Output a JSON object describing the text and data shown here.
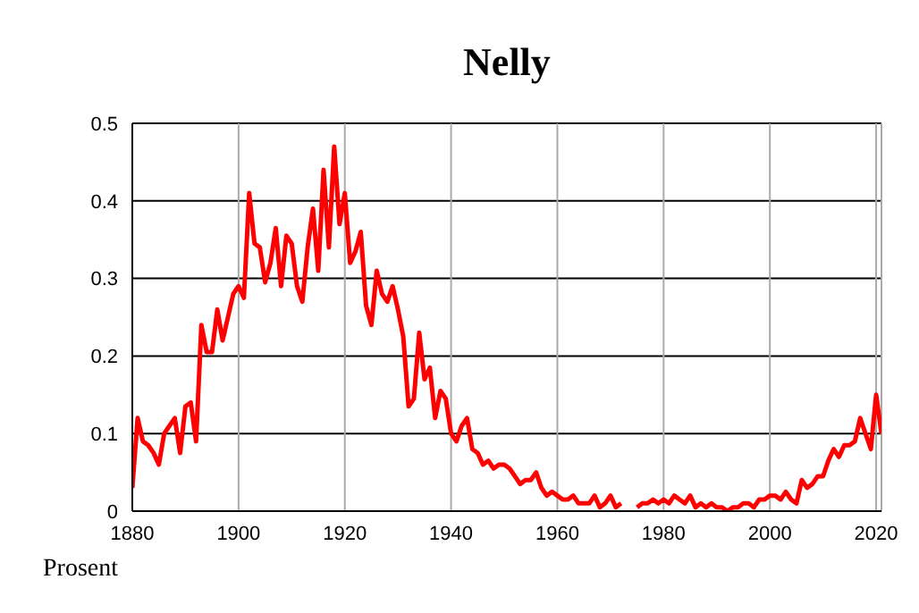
{
  "chart_data": {
    "type": "line",
    "title": "Nelly",
    "ylabel": "Prosent",
    "x": [
      1880,
      1881,
      1882,
      1883,
      1884,
      1885,
      1886,
      1887,
      1888,
      1889,
      1890,
      1891,
      1892,
      1893,
      1894,
      1895,
      1896,
      1897,
      1898,
      1899,
      1900,
      1901,
      1902,
      1903,
      1904,
      1905,
      1906,
      1907,
      1908,
      1909,
      1910,
      1911,
      1912,
      1913,
      1914,
      1915,
      1916,
      1917,
      1918,
      1919,
      1920,
      1921,
      1922,
      1923,
      1924,
      1925,
      1926,
      1927,
      1928,
      1929,
      1930,
      1931,
      1932,
      1933,
      1934,
      1935,
      1936,
      1937,
      1938,
      1939,
      1940,
      1941,
      1942,
      1943,
      1944,
      1945,
      1946,
      1947,
      1948,
      1949,
      1950,
      1951,
      1952,
      1953,
      1954,
      1955,
      1956,
      1957,
      1958,
      1959,
      1960,
      1961,
      1962,
      1963,
      1964,
      1965,
      1966,
      1967,
      1968,
      1969,
      1970,
      1971,
      1972,
      1973,
      1974,
      1975,
      1976,
      1977,
      1978,
      1979,
      1980,
      1981,
      1982,
      1983,
      1984,
      1985,
      1986,
      1987,
      1988,
      1989,
      1990,
      1991,
      1992,
      1993,
      1994,
      1995,
      1996,
      1997,
      1998,
      1999,
      2000,
      2001,
      2002,
      2003,
      2004,
      2005,
      2006,
      2007,
      2008,
      2009,
      2010,
      2011,
      2012,
      2013,
      2014,
      2015,
      2016,
      2017,
      2018,
      2019,
      2020,
      2021
    ],
    "series": [
      {
        "color": "#ff0000",
        "values": [
          0.03,
          0.12,
          0.09,
          0.085,
          0.075,
          0.06,
          0.1,
          0.11,
          0.12,
          0.075,
          0.135,
          0.14,
          0.09,
          0.24,
          0.205,
          0.205,
          0.26,
          0.22,
          0.25,
          0.28,
          0.29,
          0.275,
          0.41,
          0.345,
          0.34,
          0.295,
          0.32,
          0.365,
          0.29,
          0.355,
          0.345,
          0.29,
          0.27,
          0.34,
          0.39,
          0.31,
          0.44,
          0.34,
          0.47,
          0.37,
          0.41,
          0.32,
          0.335,
          0.36,
          0.265,
          0.24,
          0.31,
          0.28,
          0.27,
          0.29,
          0.26,
          0.225,
          0.135,
          0.145,
          0.23,
          0.17,
          0.185,
          0.12,
          0.155,
          0.145,
          0.1,
          0.09,
          0.11,
          0.12,
          0.08,
          0.075,
          0.06,
          0.065,
          0.055,
          0.06,
          0.06,
          0.055,
          0.045,
          0.035,
          0.04,
          0.04,
          0.05,
          0.03,
          0.02,
          0.025,
          0.02,
          0.015,
          0.015,
          0.02,
          0.01,
          0.01,
          0.01,
          0.02,
          0.005,
          0.01,
          0.02,
          0.005,
          0.01,
          null,
          null,
          0.005,
          0.01,
          0.01,
          0.015,
          0.01,
          0.015,
          0.01,
          0.02,
          0.015,
          0.01,
          0.02,
          0.005,
          0.01,
          0.005,
          0.01,
          0.005,
          0.005,
          0,
          0.005,
          0.005,
          0.01,
          0.01,
          0.005,
          0.015,
          0.015,
          0.02,
          0.02,
          0.015,
          0.025,
          0.015,
          0.01,
          0.04,
          0.03,
          0.035,
          0.045,
          0.045,
          0.065,
          0.08,
          0.07,
          0.085,
          0.085,
          0.09,
          0.12,
          0.1,
          0.08,
          0.15,
          0.1
        ]
      }
    ],
    "xlim": [
      1880,
      2021
    ],
    "xticks": [
      1880,
      1900,
      1920,
      1940,
      1960,
      1980,
      2000,
      2020
    ],
    "ylim": [
      0,
      0.5
    ],
    "yticks": [
      0,
      0.1,
      0.2,
      0.3,
      0.4,
      0.5
    ],
    "grid": true,
    "marker": "none",
    "line_style": "solid"
  }
}
